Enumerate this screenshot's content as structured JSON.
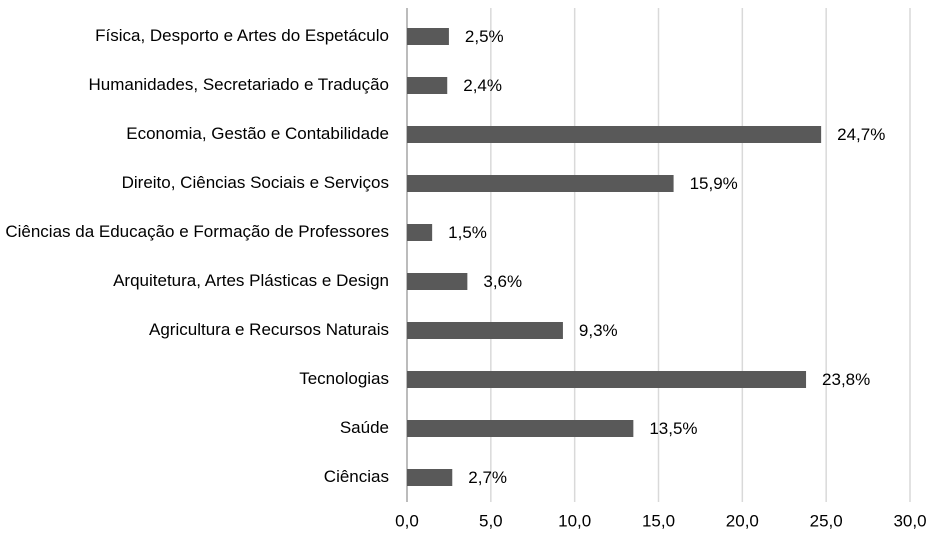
{
  "chart_data": {
    "type": "bar",
    "orientation": "horizontal",
    "categories": [
      "Física, Desporto e Artes do Espetáculo",
      "Humanidades, Secretariado e Tradução",
      "Economia, Gestão e Contabilidade",
      "Direito, Ciências Sociais e Serviços",
      "Ciências da Educação e Formação de Professores",
      "Arquitetura, Artes Plásticas e Design",
      "Agricultura e Recursos Naturais",
      "Tecnologias",
      "Saúde",
      "Ciências"
    ],
    "values": [
      2.5,
      2.4,
      24.7,
      15.9,
      1.5,
      3.6,
      9.3,
      23.8,
      13.5,
      2.7
    ],
    "value_labels": [
      "2,5%",
      "2,4%",
      "24,7%",
      "15,9%",
      "1,5%",
      "3,6%",
      "9,3%",
      "23,8%",
      "13,5%",
      "2,7%"
    ],
    "color": "#595959",
    "xlim": [
      0,
      30
    ],
    "xticks": [
      {
        "value": 0,
        "label": "0,0"
      },
      {
        "value": 5,
        "label": "5,0"
      },
      {
        "value": 10,
        "label": "10,0"
      },
      {
        "value": 15,
        "label": "15,0"
      },
      {
        "value": 20,
        "label": "20,0"
      },
      {
        "value": 25,
        "label": "25,0"
      },
      {
        "value": 30,
        "label": "30,0"
      }
    ],
    "grid": true
  }
}
